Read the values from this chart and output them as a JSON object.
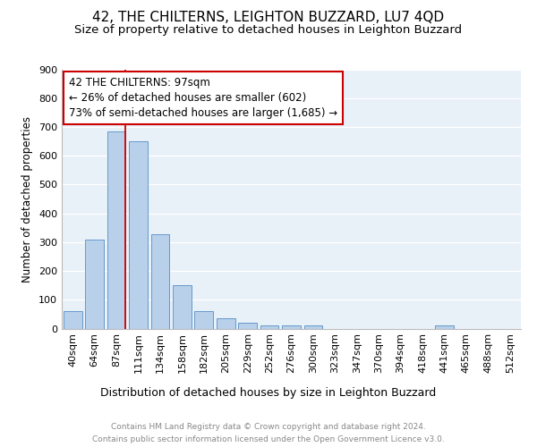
{
  "title": "42, THE CHILTERNS, LEIGHTON BUZZARD, LU7 4QD",
  "subtitle": "Size of property relative to detached houses in Leighton Buzzard",
  "xlabel": "Distribution of detached houses by size in Leighton Buzzard",
  "ylabel": "Number of detached properties",
  "bar_color": "#b8d0ea",
  "bar_edge_color": "#6699cc",
  "background_color": "#e8f0f8",
  "grid_color": "#ffffff",
  "categories": [
    "40sqm",
    "64sqm",
    "87sqm",
    "111sqm",
    "134sqm",
    "158sqm",
    "182sqm",
    "205sqm",
    "229sqm",
    "252sqm",
    "276sqm",
    "300sqm",
    "323sqm",
    "347sqm",
    "370sqm",
    "394sqm",
    "418sqm",
    "441sqm",
    "465sqm",
    "488sqm",
    "512sqm"
  ],
  "values": [
    62,
    310,
    683,
    650,
    328,
    150,
    62,
    35,
    20,
    12,
    10,
    10,
    0,
    0,
    0,
    0,
    0,
    12,
    0,
    0,
    0
  ],
  "ylim": [
    0,
    900
  ],
  "yticks": [
    0,
    100,
    200,
    300,
    400,
    500,
    600,
    700,
    800,
    900
  ],
  "annotation_line1": "42 THE CHILTERNS: 97sqm",
  "annotation_line2": "← 26% of detached houses are smaller (602)",
  "annotation_line3": "73% of semi-detached houses are larger (1,685) →",
  "annotation_box_color": "#cc0000",
  "footer_line1": "Contains HM Land Registry data © Crown copyright and database right 2024.",
  "footer_line2": "Contains public sector information licensed under the Open Government Licence v3.0.",
  "title_fontsize": 11,
  "subtitle_fontsize": 9.5,
  "tick_fontsize": 8,
  "ylabel_fontsize": 8.5,
  "xlabel_fontsize": 9,
  "footer_fontsize": 6.5,
  "annot_fontsize": 8.5
}
